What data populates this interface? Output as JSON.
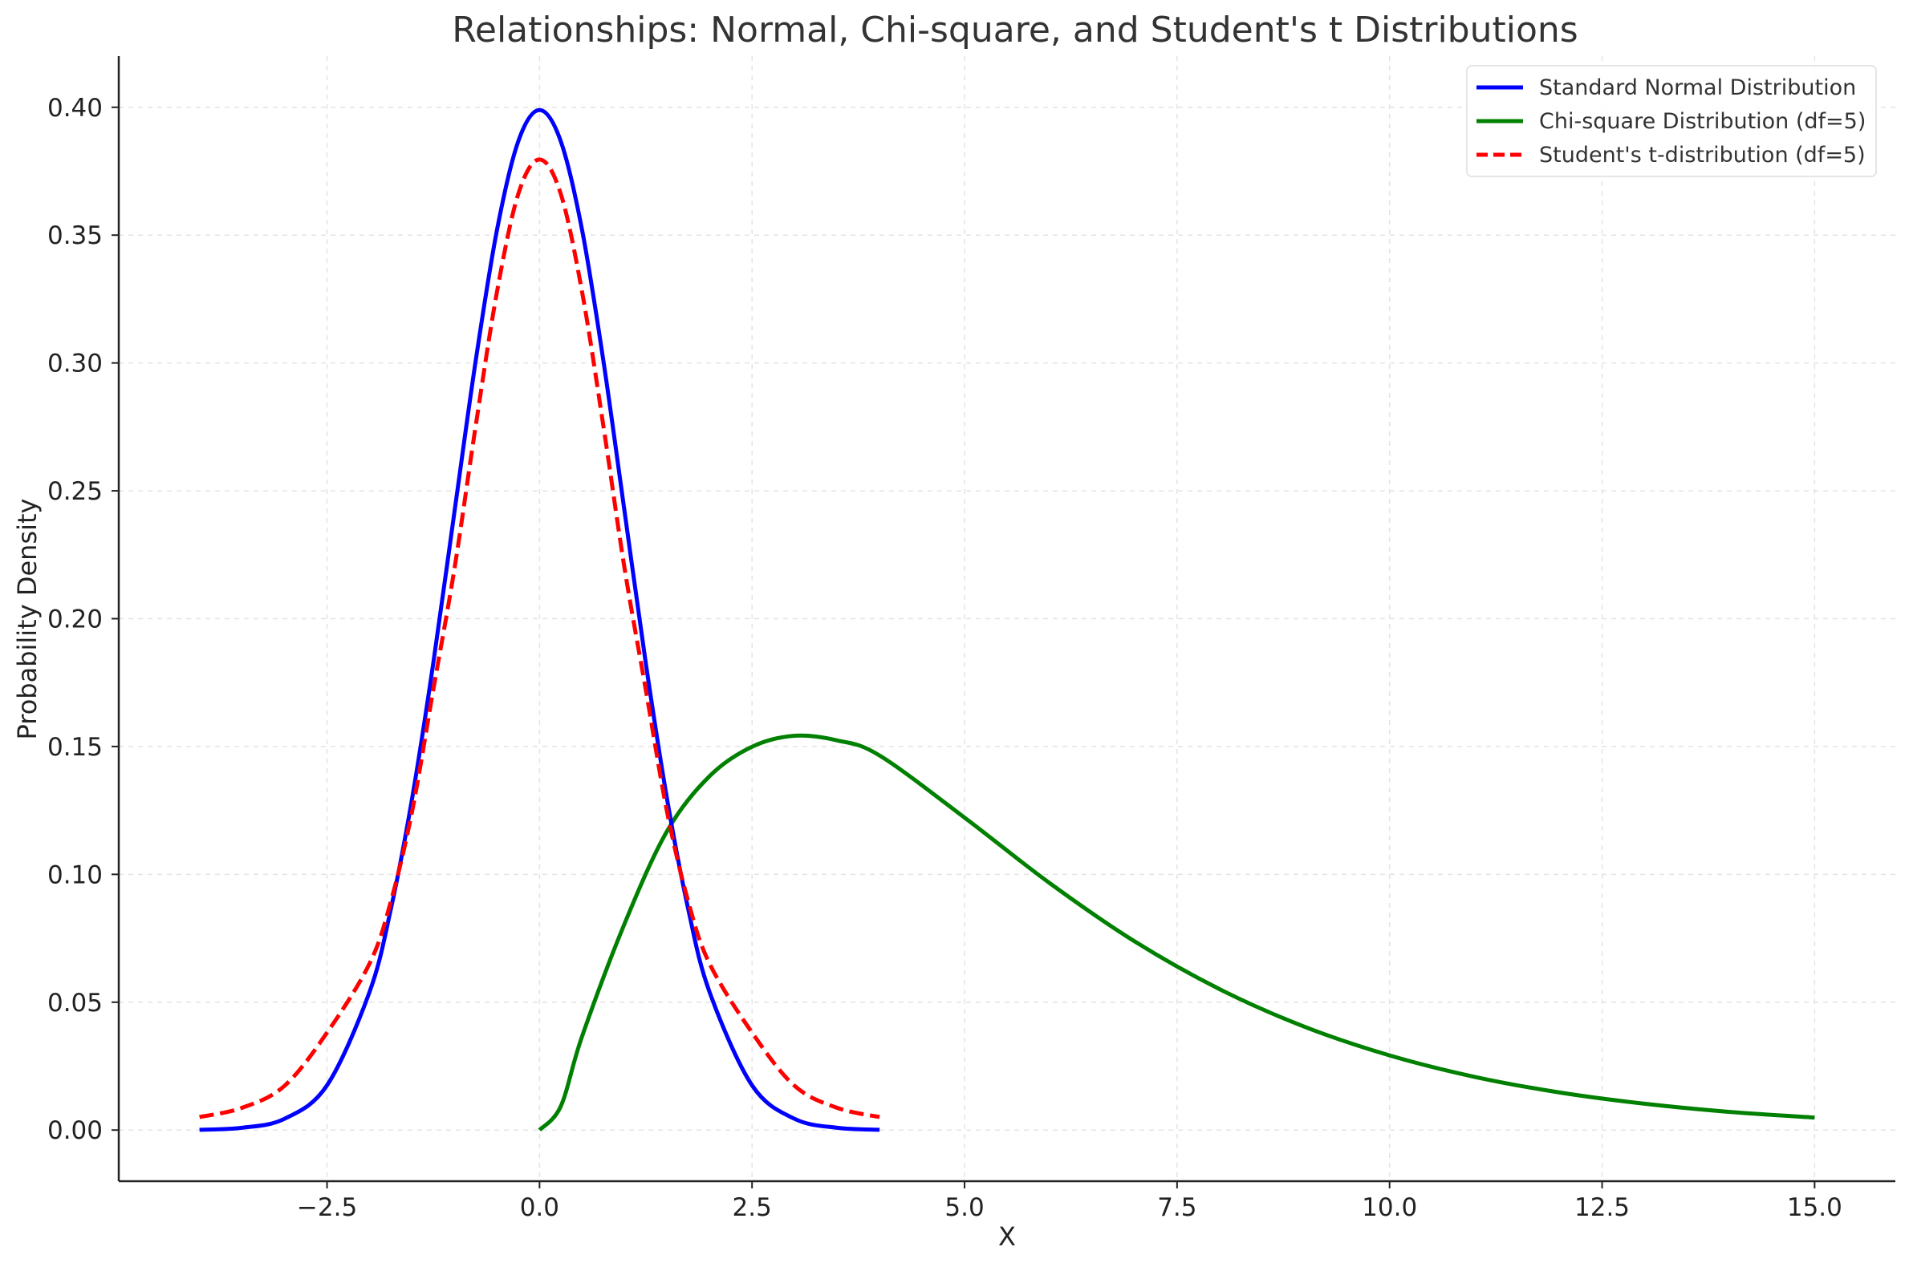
{
  "chart_data": {
    "type": "line",
    "title": "Relationships: Normal, Chi-square, and Student's t Distributions",
    "xlabel": "X",
    "ylabel": "Probability Density",
    "xlim": [
      -4.95,
      15.95
    ],
    "ylim": [
      -0.02,
      0.42
    ],
    "x_ticks": [
      -2.5,
      0.0,
      2.5,
      5.0,
      7.5,
      10.0,
      12.5,
      15.0
    ],
    "x_tick_labels": [
      "−2.5",
      "0.0",
      "2.5",
      "5.0",
      "7.5",
      "10.0",
      "12.5",
      "15.0"
    ],
    "y_ticks": [
      0.0,
      0.05,
      0.1,
      0.15,
      0.2,
      0.25,
      0.3,
      0.35,
      0.4
    ],
    "y_tick_labels": [
      "0.00",
      "0.05",
      "0.10",
      "0.15",
      "0.20",
      "0.25",
      "0.30",
      "0.35",
      "0.40"
    ],
    "grid": true,
    "legend_position": "top-right",
    "series": [
      {
        "name": "Standard Normal Distribution",
        "color": "#0000ff",
        "dash": "solid",
        "x": [
          -4.0,
          -3.5,
          -3.0,
          -2.5,
          -2.0,
          -1.75,
          -1.5,
          -1.25,
          -1.0,
          -0.75,
          -0.5,
          -0.25,
          0.0,
          0.25,
          0.5,
          0.75,
          1.0,
          1.25,
          1.5,
          1.75,
          2.0,
          2.5,
          3.0,
          3.5,
          4.0
        ],
        "y": [
          0.0001,
          0.0009,
          0.0044,
          0.0175,
          0.054,
          0.0863,
          0.1295,
          0.1826,
          0.242,
          0.3011,
          0.3521,
          0.3867,
          0.3989,
          0.3867,
          0.3521,
          0.3011,
          0.242,
          0.1826,
          0.1295,
          0.0863,
          0.054,
          0.0175,
          0.0044,
          0.0009,
          0.0001
        ]
      },
      {
        "name": "Chi-square Distribution (df=5)",
        "color": "#008000",
        "dash": "solid",
        "x": [
          0.0,
          0.25,
          0.5,
          1.0,
          1.5,
          2.0,
          2.5,
          3.0,
          3.5,
          4.0,
          5.0,
          6.0,
          7.0,
          8.0,
          9.0,
          10.0,
          11.0,
          12.0,
          13.0,
          14.0,
          15.0
        ],
        "y": [
          0.0,
          0.0093,
          0.0366,
          0.0807,
          0.1169,
          0.1384,
          0.1499,
          0.1542,
          0.1524,
          0.1465,
          0.1222,
          0.0966,
          0.0738,
          0.0551,
          0.0404,
          0.0292,
          0.0208,
          0.0147,
          0.0103,
          0.0071,
          0.0049
        ]
      },
      {
        "name": "Student's t-distribution (df=5)",
        "color": "#ff0000",
        "dash": "dashed",
        "x": [
          -4.0,
          -3.5,
          -3.0,
          -2.5,
          -2.0,
          -1.75,
          -1.5,
          -1.25,
          -1.0,
          -0.75,
          -0.5,
          -0.25,
          0.0,
          0.25,
          0.5,
          0.75,
          1.0,
          1.25,
          1.5,
          1.75,
          2.0,
          2.5,
          3.0,
          3.5,
          4.0
        ],
        "y": [
          0.0051,
          0.0087,
          0.0173,
          0.0381,
          0.0651,
          0.0893,
          0.1245,
          0.1722,
          0.2197,
          0.2756,
          0.3279,
          0.3661,
          0.3796,
          0.3661,
          0.3279,
          0.2756,
          0.2197,
          0.1722,
          0.1245,
          0.0893,
          0.0651,
          0.0381,
          0.0173,
          0.0087,
          0.0051
        ]
      }
    ]
  }
}
